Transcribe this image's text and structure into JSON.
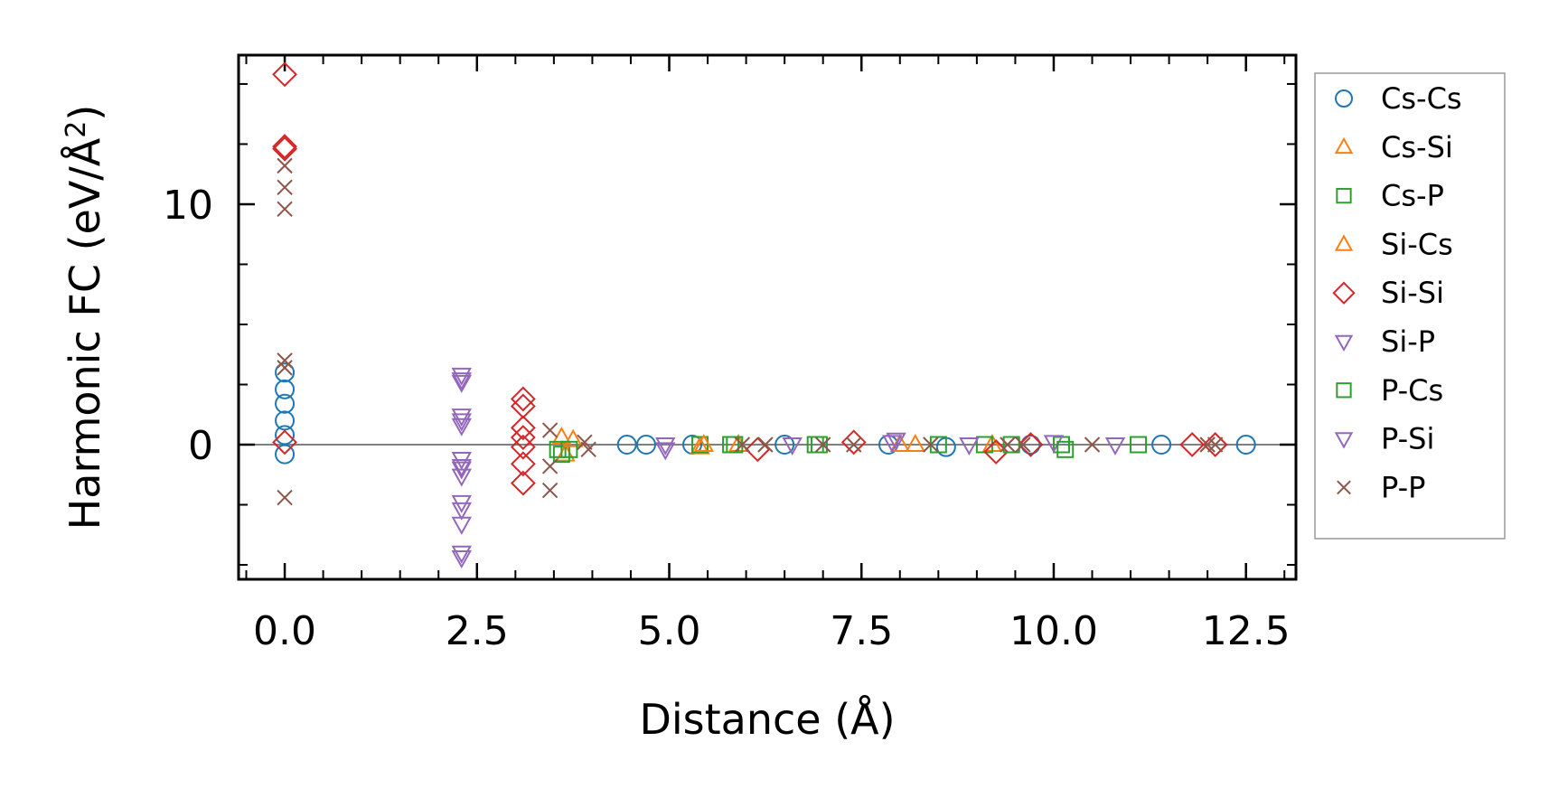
{
  "chart_data": {
    "type": "scatter",
    "title": "",
    "xlabel": "Distance (Å)",
    "ylabel_main": "Harmonic FC (eV/Å",
    "ylabel_sup": "2",
    "ylabel_close": ")",
    "xlim": [
      -0.6,
      13.15
    ],
    "ylim": [
      -5.6,
      16.2
    ],
    "xticks": [
      0.0,
      2.5,
      5.0,
      7.5,
      10.0,
      12.5
    ],
    "xtick_labels": [
      "0.0",
      "2.5",
      "5.0",
      "7.5",
      "10.0",
      "12.5"
    ],
    "yticks": [
      0,
      10
    ],
    "ytick_labels": [
      "0",
      "10"
    ],
    "legend_position": "outside-right",
    "zero_line": true,
    "series": [
      {
        "name": "Cs-Cs",
        "marker": "circle",
        "color": "#1f77b4",
        "points": [
          [
            0,
            -0.4
          ],
          [
            0,
            0.4
          ],
          [
            0,
            1.0
          ],
          [
            0,
            1.7
          ],
          [
            0,
            2.3
          ],
          [
            0,
            3.0
          ],
          [
            4.45,
            0
          ],
          [
            4.7,
            0
          ],
          [
            5.3,
            0
          ],
          [
            6.5,
            0
          ],
          [
            7.85,
            0
          ],
          [
            8.6,
            -0.1
          ],
          [
            9.7,
            0
          ],
          [
            11.4,
            0
          ],
          [
            12.5,
            0
          ]
        ]
      },
      {
        "name": "Cs-Si",
        "marker": "triangle-up",
        "color": "#ff7f0e",
        "points": [
          [
            3.6,
            0.3
          ],
          [
            3.65,
            -0.4
          ],
          [
            5.4,
            -0.1
          ],
          [
            5.9,
            0
          ],
          [
            8.2,
            0
          ],
          [
            9.2,
            0
          ]
        ]
      },
      {
        "name": "Cs-P",
        "marker": "square",
        "color": "#2ca02c",
        "points": [
          [
            3.55,
            -0.2
          ],
          [
            3.6,
            -0.4
          ],
          [
            5.4,
            0
          ],
          [
            5.85,
            0
          ],
          [
            6.9,
            0
          ],
          [
            8.5,
            0
          ],
          [
            9.1,
            0
          ],
          [
            10.1,
            0
          ],
          [
            11.1,
            0
          ]
        ]
      },
      {
        "name": "Si-Cs",
        "marker": "triangle-up",
        "color": "#ff7f0e",
        "points": [
          [
            3.75,
            0.2
          ],
          [
            5.45,
            0
          ],
          [
            8.0,
            0
          ]
        ]
      },
      {
        "name": "Si-Si",
        "marker": "diamond",
        "color": "#d62728",
        "points": [
          [
            0,
            15.4
          ],
          [
            0,
            12.4
          ],
          [
            0,
            12.3
          ],
          [
            0,
            0.1
          ],
          [
            3.1,
            1.9
          ],
          [
            3.1,
            1.6
          ],
          [
            3.1,
            0.7
          ],
          [
            3.1,
            0.3
          ],
          [
            3.1,
            -0.1
          ],
          [
            3.1,
            -0.8
          ],
          [
            3.1,
            -1.6
          ],
          [
            6.15,
            -0.2
          ],
          [
            7.4,
            0.1
          ],
          [
            9.25,
            -0.3
          ],
          [
            9.7,
            0
          ],
          [
            11.8,
            0
          ],
          [
            12.1,
            0
          ]
        ]
      },
      {
        "name": "Si-P",
        "marker": "triangle-down",
        "color": "#9467bd",
        "points": [
          [
            2.3,
            2.9
          ],
          [
            2.3,
            2.6
          ],
          [
            2.3,
            1.2
          ],
          [
            2.3,
            0.8
          ],
          [
            2.3,
            -0.6
          ],
          [
            2.3,
            -1.0
          ],
          [
            2.3,
            -1.3
          ],
          [
            2.3,
            -2.4
          ],
          [
            2.3,
            -3.3
          ],
          [
            2.3,
            -4.5
          ],
          [
            4.95,
            0
          ],
          [
            6.6,
            0
          ],
          [
            7.95,
            0.2
          ],
          [
            8.9,
            0
          ],
          [
            10.0,
            0.1
          ],
          [
            10.8,
            0
          ]
        ]
      },
      {
        "name": "P-Cs",
        "marker": "square",
        "color": "#2ca02c",
        "points": [
          [
            3.7,
            -0.2
          ],
          [
            5.8,
            0
          ],
          [
            6.95,
            0
          ],
          [
            9.45,
            0
          ],
          [
            10.15,
            -0.2
          ]
        ]
      },
      {
        "name": "P-Si",
        "marker": "triangle-down",
        "color": "#9467bd",
        "points": [
          [
            2.3,
            2.7
          ],
          [
            2.3,
            1.0
          ],
          [
            2.3,
            -0.9
          ],
          [
            2.3,
            -2.7
          ],
          [
            2.3,
            -4.7
          ],
          [
            4.95,
            -0.2
          ],
          [
            7.9,
            0.1
          ]
        ]
      },
      {
        "name": "P-P",
        "marker": "x",
        "color": "#8c564b",
        "points": [
          [
            0,
            11.6
          ],
          [
            0,
            10.7
          ],
          [
            0,
            9.8
          ],
          [
            0,
            3.5
          ],
          [
            0,
            3.2
          ],
          [
            0,
            -2.2
          ],
          [
            3.45,
            0.6
          ],
          [
            3.45,
            -0.9
          ],
          [
            3.45,
            -1.9
          ],
          [
            3.9,
            0.1
          ],
          [
            3.95,
            -0.2
          ],
          [
            5.95,
            0
          ],
          [
            6.25,
            0
          ],
          [
            7.0,
            0
          ],
          [
            7.4,
            0
          ],
          [
            8.4,
            0
          ],
          [
            9.4,
            0
          ],
          [
            9.6,
            0
          ],
          [
            10.5,
            0
          ],
          [
            12.0,
            0
          ],
          [
            12.1,
            0
          ]
        ]
      }
    ]
  }
}
